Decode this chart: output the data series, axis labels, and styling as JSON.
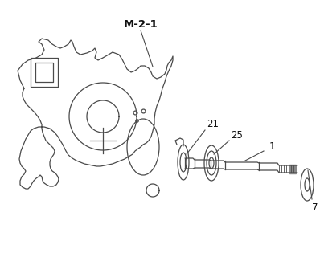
{
  "background_color": "#ffffff",
  "line_color": "#4a4a4a",
  "label_color": "#111111",
  "label_fontsize": 8.5,
  "figsize": [
    4.03,
    3.2
  ],
  "dpi": 100,
  "xlim": [
    0,
    403
  ],
  "ylim": [
    0,
    320
  ]
}
